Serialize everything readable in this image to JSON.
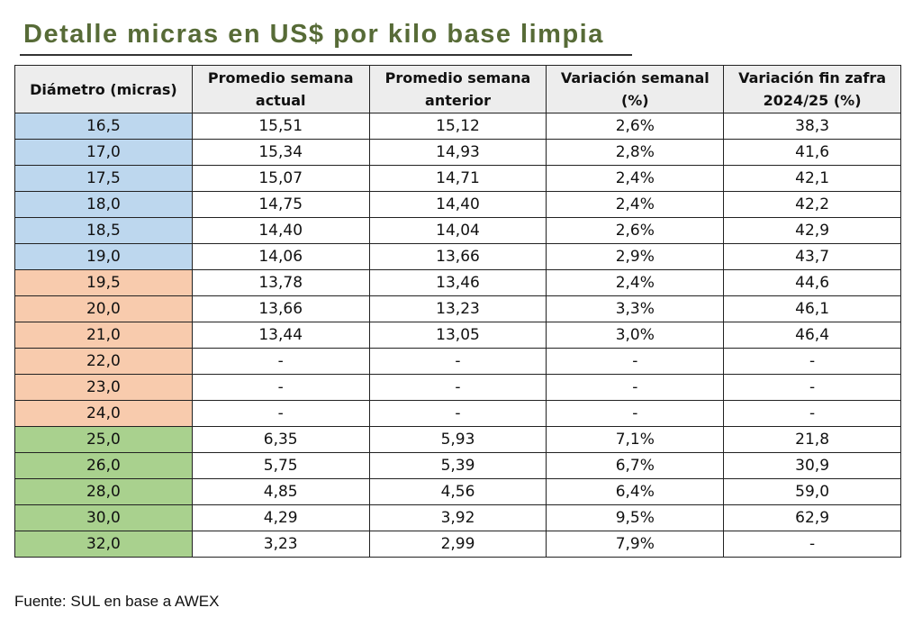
{
  "title": "Detalle micras en US$ por kilo base limpia",
  "headers": [
    "Diámetro (micras)",
    "Promedio semana actual",
    "Promedio semana anterior",
    "Variación semanal (%)",
    "Variación fin zafra 2024/25 (%)"
  ],
  "colors": {
    "b": "#bdd7ee",
    "o": "#f8cbad",
    "g": "#a9d18e"
  },
  "rows": [
    {
      "group": "b",
      "cells": [
        "16,5",
        "15,51",
        "15,12",
        "2,6%",
        "38,3"
      ]
    },
    {
      "group": "b",
      "cells": [
        "17,0",
        "15,34",
        "14,93",
        "2,8%",
        "41,6"
      ]
    },
    {
      "group": "b",
      "cells": [
        "17,5",
        "15,07",
        "14,71",
        "2,4%",
        "42,1"
      ]
    },
    {
      "group": "b",
      "cells": [
        "18,0",
        "14,75",
        "14,40",
        "2,4%",
        "42,2"
      ]
    },
    {
      "group": "b",
      "cells": [
        "18,5",
        "14,40",
        "14,04",
        "2,6%",
        "42,9"
      ]
    },
    {
      "group": "b",
      "cells": [
        "19,0",
        "14,06",
        "13,66",
        "2,9%",
        "43,7"
      ]
    },
    {
      "group": "o",
      "cells": [
        "19,5",
        "13,78",
        "13,46",
        "2,4%",
        "44,6"
      ]
    },
    {
      "group": "o",
      "cells": [
        "20,0",
        "13,66",
        "13,23",
        "3,3%",
        "46,1"
      ]
    },
    {
      "group": "o",
      "cells": [
        "21,0",
        "13,44",
        "13,05",
        "3,0%",
        "46,4"
      ]
    },
    {
      "group": "o",
      "cells": [
        "22,0",
        "-",
        "-",
        "-",
        "-"
      ]
    },
    {
      "group": "o",
      "cells": [
        "23,0",
        "-",
        "-",
        "-",
        "-"
      ]
    },
    {
      "group": "o",
      "cells": [
        "24,0",
        "-",
        "-",
        "-",
        "-"
      ]
    },
    {
      "group": "g",
      "cells": [
        "25,0",
        "6,35",
        "5,93",
        "7,1%",
        "21,8"
      ]
    },
    {
      "group": "g",
      "cells": [
        "26,0",
        "5,75",
        "5,39",
        "6,7%",
        "30,9"
      ]
    },
    {
      "group": "g",
      "cells": [
        "28,0",
        "4,85",
        "4,56",
        "6,4%",
        "59,0"
      ]
    },
    {
      "group": "g",
      "cells": [
        "30,0",
        "4,29",
        "3,92",
        "9,5%",
        "62,9"
      ]
    },
    {
      "group": "g",
      "cells": [
        "32,0",
        "3,23",
        "2,99",
        "7,9%",
        "-"
      ]
    }
  ],
  "footer": "Fuente: SUL en base a AWEX"
}
